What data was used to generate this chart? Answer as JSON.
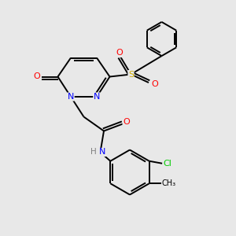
{
  "bg_color": "#e8e8e8",
  "bond_color": "#000000",
  "atom_colors": {
    "N": "#0000ff",
    "O": "#ff0000",
    "S": "#ccaa00",
    "Cl": "#00cc00",
    "H": "#808080"
  },
  "font_size": 8.0
}
